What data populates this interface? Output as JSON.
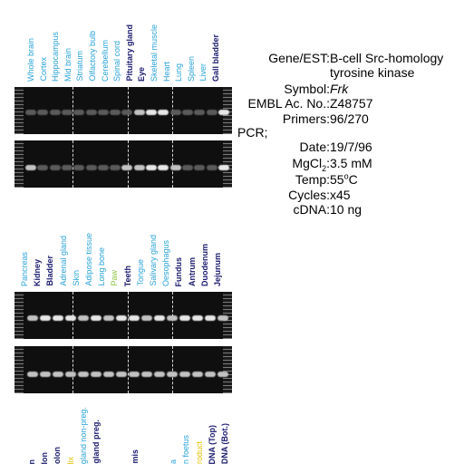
{
  "top_panel": {
    "lane_labels": [
      {
        "text": "Whole brain",
        "color": "#2aa3d8"
      },
      {
        "text": "Cortex",
        "color": "#2aa3d8"
      },
      {
        "text": "Hippocampus",
        "color": "#2aa3d8"
      },
      {
        "text": "Mid brain",
        "color": "#2aa3d8"
      },
      {
        "text": "Striatum",
        "color": "#2aa3d8"
      },
      {
        "text": "Olfactory bulb",
        "color": "#2aa3d8"
      },
      {
        "text": "Cerebellum",
        "color": "#2aa3d8"
      },
      {
        "text": "Spinal cord",
        "color": "#2aa3d8"
      },
      {
        "text": "Pituitary gland",
        "color": "#1a1a6e"
      },
      {
        "text": "Eye",
        "color": "#1a1a6e"
      },
      {
        "text": "Skeletal muscle",
        "color": "#2aa3d8"
      },
      {
        "text": "Heart",
        "color": "#2aa3d8"
      },
      {
        "text": "Lung",
        "color": "#2aa3d8"
      },
      {
        "text": "Spleen",
        "color": "#2aa3d8"
      },
      {
        "text": "Liver",
        "color": "#2aa3d8"
      },
      {
        "text": "Gall bladder",
        "color": "#1a1a6e"
      }
    ]
  },
  "middle_panel": {
    "lane_labels": [
      {
        "text": "Pancreas",
        "color": "#2aa3d8"
      },
      {
        "text": "Kidney",
        "color": "#1a1a6e"
      },
      {
        "text": "Bladder",
        "color": "#1a1a6e"
      },
      {
        "text": "Adrenal gland",
        "color": "#2aa3d8"
      },
      {
        "text": "Skin",
        "color": "#2aa3d8"
      },
      {
        "text": "Adipose tissue",
        "color": "#2aa3d8"
      },
      {
        "text": "Long bone",
        "color": "#2aa3d8"
      },
      {
        "text": "Paw",
        "color": "#8cc63f"
      },
      {
        "text": "Teeth",
        "color": "#1a1a6e"
      },
      {
        "text": "Tongue",
        "color": "#2aa3d8"
      },
      {
        "text": "Salivary gland",
        "color": "#2aa3d8"
      },
      {
        "text": "Oesophagus",
        "color": "#2aa3d8"
      },
      {
        "text": "Fundus",
        "color": "#1a1a6e"
      },
      {
        "text": "Antrum",
        "color": "#1a1a6e"
      },
      {
        "text": "Duodenum",
        "color": "#1a1a6e"
      },
      {
        "text": "Jejunum",
        "color": "#1a1a6e"
      }
    ]
  },
  "bottom_panel": {
    "lane_labels": [
      {
        "text": "n",
        "color": "#1a1a6e"
      },
      {
        "text": "lon",
        "color": "#1a1a6e"
      },
      {
        "text": "olon",
        "color": "#1a1a6e"
      },
      {
        "text": "lix",
        "color": "#e6c200"
      },
      {
        "text": "gland non-preg.",
        "color": "#2aa3d8"
      },
      {
        "text": "gland preg.",
        "color": "#1a1a6e"
      },
      {
        "text": "",
        "color": "#1a1a6e"
      },
      {
        "text": "",
        "color": "#1a1a6e"
      },
      {
        "text": "mis",
        "color": "#1a1a6e"
      },
      {
        "text": "",
        "color": "#1a1a6e"
      },
      {
        "text": "",
        "color": "#1a1a6e"
      },
      {
        "text": "a",
        "color": "#2aa3d8"
      },
      {
        "text": "n foetus",
        "color": "#2aa3d8"
      },
      {
        "text": "roduct",
        "color": "#e6c200"
      },
      {
        "text": "DNA (Top)",
        "color": "#1a1a6e"
      },
      {
        "text": "DNA (Bot.)",
        "color": "#1a1a6e"
      }
    ]
  },
  "gene_info": {
    "gene_est_label": "Gene/EST:",
    "gene_est_value_line1": "B-cell Src-homology",
    "gene_est_value_line2": "tyrosine kinase",
    "symbol_label": "Symbol:",
    "symbol_value": "Frk",
    "embl_label": "EMBL Ac. No.:",
    "embl_value": "Z48757",
    "primers_label": "Primers:",
    "primers_value": "96/270",
    "pcr_label": "PCR;",
    "date_label": "Date:",
    "date_value": "19/7/96",
    "mgcl_label_main": "MgCl",
    "mgcl_label_sub": "2",
    "mgcl_label_end": ":",
    "mgcl_value": "3.5 mM",
    "temp_label": "Temp:",
    "temp_value_main": "55",
    "temp_value_sup": "o",
    "temp_value_end": "C",
    "cycles_label": "Cycles:",
    "cycles_value": "x45",
    "cdna_label": "cDNA:",
    "cdna_value": "10 ng"
  }
}
